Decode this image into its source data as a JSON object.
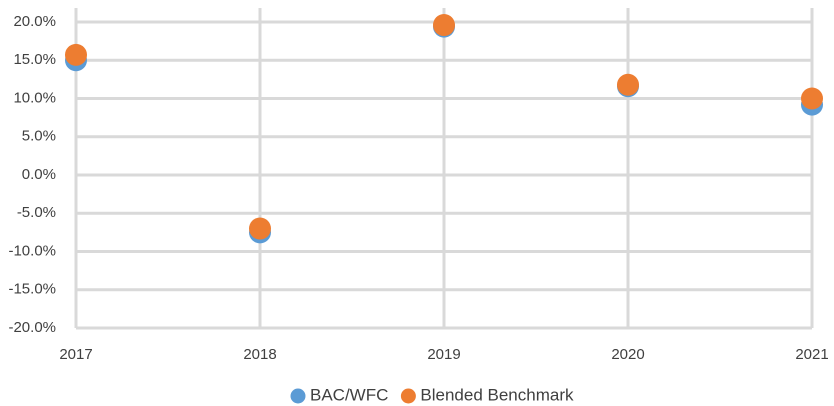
{
  "chart_data": {
    "type": "scatter",
    "x": [
      2017,
      2018,
      2019,
      2020,
      2021
    ],
    "series": [
      {
        "name": "BAC/WFC",
        "color": "#5b9bd5",
        "values": [
          15.0,
          -7.5,
          19.4,
          11.6,
          9.2
        ]
      },
      {
        "name": "Blended Benchmark",
        "color": "#ed7d31",
        "values": [
          15.7,
          -7.0,
          19.6,
          11.8,
          10.0
        ]
      }
    ],
    "xlim": [
      2017,
      2021
    ],
    "xticks": [
      2017,
      2018,
      2019,
      2020,
      2021
    ],
    "ylim": [
      -20,
      20
    ],
    "yticks": [
      {
        "value": -20,
        "label": "-20.0%"
      },
      {
        "value": -15,
        "label": "-15.0%"
      },
      {
        "value": -10,
        "label": "-10.0%"
      },
      {
        "value": -5,
        "label": "-5.0%"
      },
      {
        "value": 0,
        "label": "0.0%"
      },
      {
        "value": 5,
        "label": "5.0%"
      },
      {
        "value": 10,
        "label": "10.0%"
      },
      {
        "value": 15,
        "label": "15.0%"
      },
      {
        "value": 20,
        "label": "20.0%"
      }
    ],
    "grid": true,
    "legend": "bottom"
  }
}
